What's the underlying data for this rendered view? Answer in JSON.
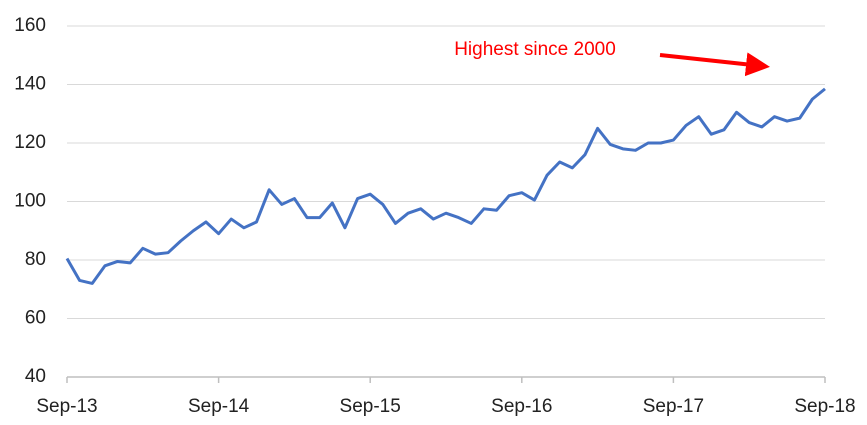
{
  "chart_data": {
    "type": "line",
    "annotation": "Highest since 2000",
    "categories": [
      "Sep-13",
      null,
      null,
      null,
      null,
      null,
      null,
      null,
      null,
      null,
      null,
      null,
      "Sep-14",
      null,
      null,
      null,
      null,
      null,
      null,
      null,
      null,
      null,
      null,
      null,
      "Sep-15",
      null,
      null,
      null,
      null,
      null,
      null,
      null,
      null,
      null,
      null,
      null,
      "Sep-16",
      null,
      null,
      null,
      null,
      null,
      null,
      null,
      null,
      null,
      null,
      null,
      "Sep-17",
      null,
      null,
      null,
      null,
      null,
      null,
      null,
      null,
      null,
      null,
      null,
      "Sep-18"
    ],
    "series": [
      {
        "color": "#4472c4",
        "values": [
          80.5,
          73,
          72,
          78,
          79.5,
          79,
          84,
          82,
          82.5,
          86.5,
          90,
          93,
          89,
          94,
          91,
          93,
          104,
          99,
          101,
          94.5,
          94.5,
          99.5,
          91,
          101,
          102.5,
          99,
          92.5,
          96,
          97.5,
          94,
          96,
          94.5,
          92.5,
          97.5,
          97,
          102,
          103,
          100.5,
          109,
          113.5,
          111.5,
          116,
          125,
          119.5,
          118,
          117.5,
          120,
          120,
          121,
          126,
          129,
          123,
          124.5,
          130.5,
          127,
          125.5,
          129,
          127.5,
          128.5,
          135,
          138.5
        ]
      }
    ],
    "ylim": [
      40,
      160
    ],
    "yticks": [
      40,
      60,
      80,
      100,
      120,
      140,
      160
    ],
    "grid": true
  }
}
